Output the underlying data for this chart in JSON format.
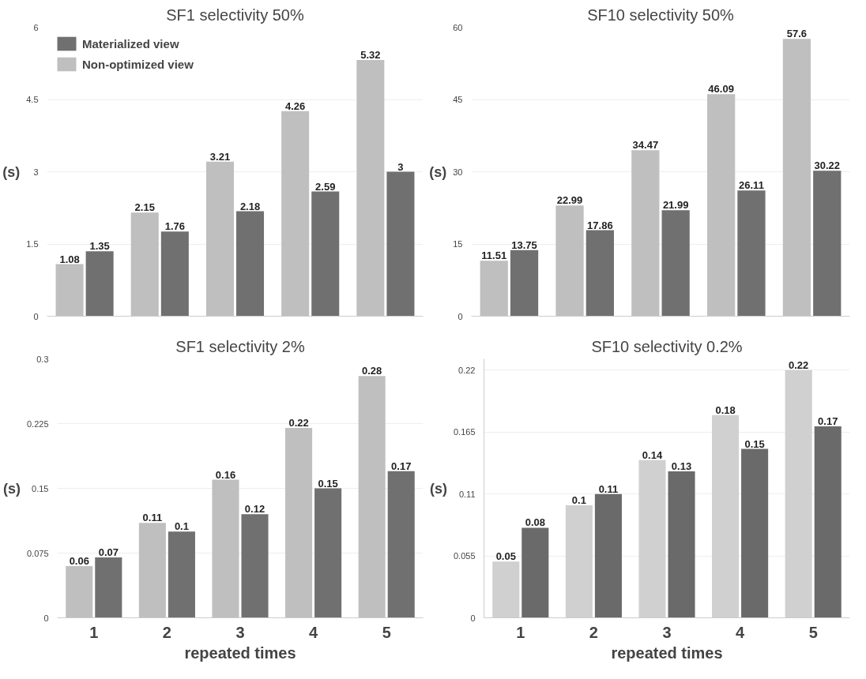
{
  "chart_data": [
    {
      "type": "bar",
      "title": "SF1 selectivity 50%",
      "ylabel": "(s)",
      "categories": [
        "1",
        "2",
        "3",
        "4",
        "5"
      ],
      "ylim": [
        0,
        6
      ],
      "yticks": [
        0,
        1.5,
        3,
        4.5,
        6
      ],
      "grid": "y",
      "legend": "top left",
      "tick_labels": "y",
      "data_labels": true,
      "series": [
        {
          "name": "Non-optimized view",
          "color": "#bfbfbf",
          "values": [
            1.08,
            2.15,
            3.21,
            4.26,
            5.32
          ]
        },
        {
          "name": "Materialized view",
          "color": "#707070",
          "values": [
            1.35,
            1.76,
            2.18,
            2.59,
            3
          ]
        }
      ]
    },
    {
      "type": "bar",
      "title": "SF10 selectivity 50%",
      "ylabel": "(s)",
      "categories": [
        "1",
        "2",
        "3",
        "4",
        "5"
      ],
      "ylim": [
        0,
        60
      ],
      "yticks": [
        0,
        15,
        30,
        45,
        60
      ],
      "grid": "y",
      "tick_labels": "y",
      "data_labels": true,
      "series": [
        {
          "color": "#bfbfbf",
          "values": [
            11.51,
            22.99,
            34.47,
            46.09,
            57.6
          ]
        },
        {
          "color": "#707070",
          "values": [
            13.75,
            17.86,
            21.99,
            26.11,
            30.22
          ]
        }
      ]
    },
    {
      "type": "bar",
      "title": "SF1 selectivity 2%",
      "ylabel": "(s)",
      "xlabel": "repeated times",
      "categories": [
        "1",
        "2",
        "3",
        "4",
        "5"
      ],
      "ylim": [
        0,
        0.3
      ],
      "yticks": [
        0,
        0.075,
        0.15,
        0.225,
        0.3
      ],
      "grid": "y",
      "data_labels": true,
      "series": [
        {
          "color": "#bfbfbf",
          "values": [
            0.06,
            0.11,
            0.16,
            0.22,
            0.28
          ]
        },
        {
          "color": "#707070",
          "values": [
            0.07,
            0.1,
            0.12,
            0.15,
            0.17
          ]
        }
      ]
    },
    {
      "type": "bar",
      "title": "SF10 selectivity 0.2%",
      "ylabel": "(s)",
      "xlabel": "repeated times",
      "categories": [
        "1",
        "2",
        "3",
        "4",
        "5"
      ],
      "ylim": [
        0,
        0.23
      ],
      "yticks": [
        0,
        0.055,
        0.11,
        0.165,
        0.22
      ],
      "grid": "y",
      "data_labels": true,
      "series": [
        {
          "color": "#d0d0d0",
          "values": [
            0.05,
            0.1,
            0.14,
            0.18,
            0.22
          ]
        },
        {
          "color": "#6a6a6a",
          "values": [
            0.08,
            0.11,
            0.13,
            0.15,
            0.17
          ]
        }
      ]
    }
  ]
}
